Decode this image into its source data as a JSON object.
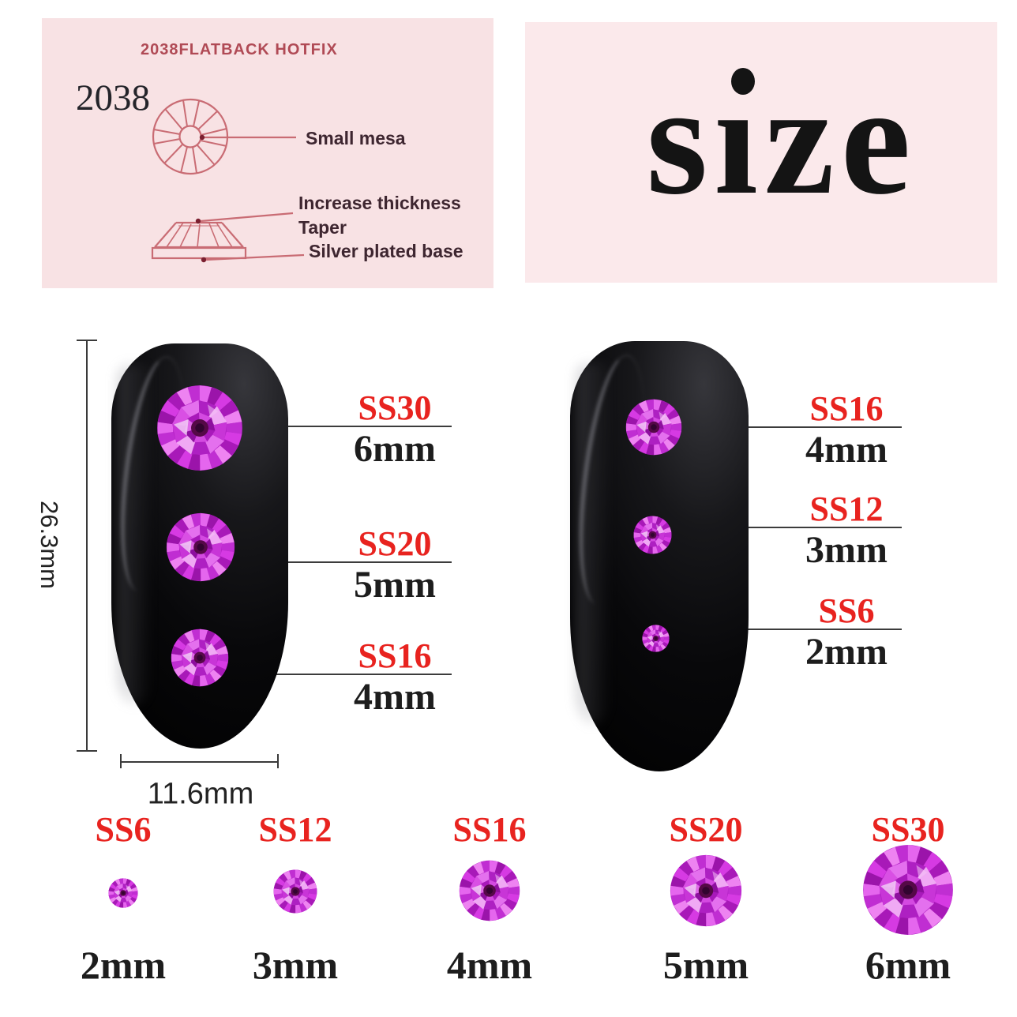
{
  "spec_panel": {
    "title": "2038FLATBACK HOTFIX",
    "model": "2038",
    "callout_top_view": "Small mesa",
    "callout_thickness": "Increase thickness",
    "callout_taper": "Taper",
    "callout_base": "Silver plated base"
  },
  "size_panel": {
    "word": "size"
  },
  "left_nail": {
    "length_label": "26.3mm",
    "width_label": "11.6mm",
    "stones": [
      {
        "ss": "SS30",
        "mm": "6mm"
      },
      {
        "ss": "SS20",
        "mm": "5mm"
      },
      {
        "ss": "SS16",
        "mm": "4mm"
      }
    ]
  },
  "right_nail": {
    "stones": [
      {
        "ss": "SS16",
        "mm": "4mm"
      },
      {
        "ss": "SS12",
        "mm": "3mm"
      },
      {
        "ss": "SS6",
        "mm": "2mm"
      }
    ]
  },
  "size_row": [
    {
      "ss": "SS6",
      "mm": "2mm"
    },
    {
      "ss": "SS12",
      "mm": "3mm"
    },
    {
      "ss": "SS16",
      "mm": "4mm"
    },
    {
      "ss": "SS20",
      "mm": "5mm"
    },
    {
      "ss": "SS30",
      "mm": "6mm"
    }
  ],
  "colors": {
    "panel_pink_left": "#f8e2e4",
    "panel_pink_right": "#fbe9eb",
    "accent_red": "#e8231f",
    "diagram_stroke": "#c96c74",
    "diagram_title": "#b04a55",
    "nail_black": "#08080a",
    "gem_base": "#b21fc4",
    "gem_center": "#550947",
    "gem_hole": "#320430",
    "gem_outer_palette": [
      "#d63ae3",
      "#a819b8",
      "#ee83f1",
      "#c02ed2",
      "#e566ee",
      "#9b14aa"
    ],
    "gem_mid_palette": [
      "#e470ee",
      "#ae20c2",
      "#f0a9f4",
      "#c835d7",
      "#d94fe4"
    ],
    "gem_inner_palette": [
      "#a819ba",
      "#d44ae1",
      "#8d0f9e",
      "#df68e8"
    ]
  }
}
